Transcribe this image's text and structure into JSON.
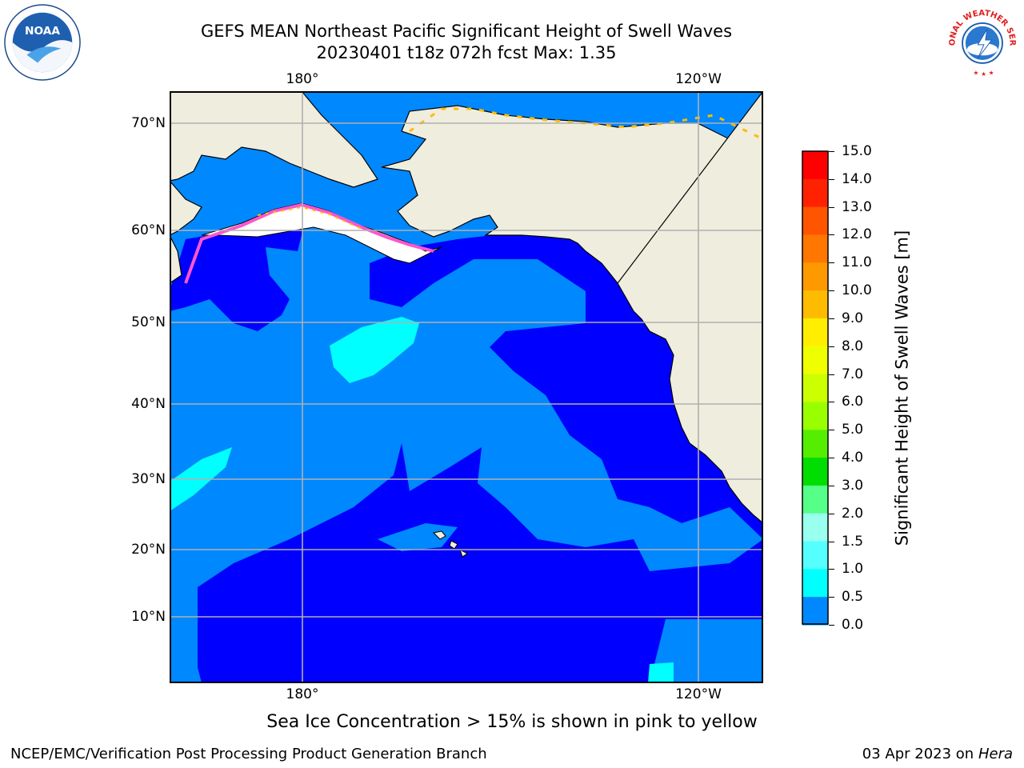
{
  "title": {
    "line1": "GEFS MEAN Northeast Pacific Significant Height of Swell Waves",
    "line2": "20230401 t18z 072h fcst   Max: 1.35"
  },
  "logos": {
    "left": {
      "icon": "noaa-logo",
      "text": "NOAA"
    },
    "right": {
      "icon": "national-weather-service-logo",
      "text": "NATIONAL WEATHER SERVICE"
    }
  },
  "axes": {
    "longitude_ticks": [
      "180°",
      "120°W"
    ],
    "latitude_ticks": [
      "70°N",
      "60°N",
      "50°N",
      "40°N",
      "30°N",
      "20°N",
      "10°N"
    ]
  },
  "colorbar": {
    "label": "Significant Height of Swell Waves [m]",
    "ticks": [
      "15.0",
      "14.0",
      "13.0",
      "12.0",
      "11.0",
      "10.0",
      "9.0",
      "8.0",
      "7.0",
      "6.0",
      "5.0",
      "4.0",
      "3.0",
      "2.0",
      "1.5",
      "1.0",
      "0.5",
      "0.0"
    ],
    "colors": [
      "#ff0000",
      "#ff2200",
      "#ff5500",
      "#ff7700",
      "#ff9900",
      "#ffbb00",
      "#ffee00",
      "#f0ff00",
      "#ccff00",
      "#99ff00",
      "#55ee00",
      "#00dd00",
      "#55ff88",
      "#99ffee",
      "#55ffff",
      "#00ffff",
      "#0088ff",
      "#0000ff"
    ]
  },
  "map_colors": {
    "land": "#efedde",
    "ocean_0_to_0.5": "#0000ff",
    "ocean_0.5_to_1": "#0088ff",
    "ocean_1_to_1.5": "#00ffff",
    "sea_ice": "#ff55cc",
    "grid": "#b0b0b0"
  },
  "note": "Sea Ice Concentration > 15% is shown in pink to yellow",
  "footer": {
    "left": "NCEP/EMC/Verification Post Processing Product Generation Branch",
    "right_text": "03 Apr 2023 on",
    "right_host": "Hera"
  }
}
